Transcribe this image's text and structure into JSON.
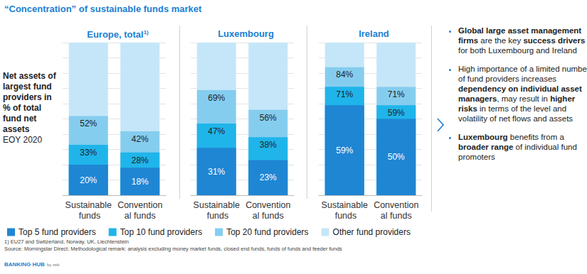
{
  "title": "“Concentration” of sustainable funds market",
  "side_label": {
    "bold": "Net assets of largest fund providers in % of total fund net assets",
    "normal": "EOY 2020"
  },
  "chart_data": [
    {
      "type": "bar",
      "title": "Europe, total",
      "title_note": "1)",
      "categories": [
        "Sustainable funds",
        "Conventional funds"
      ],
      "ylim": [
        0,
        100
      ],
      "yticks": [
        0,
        10,
        20,
        30,
        40,
        50,
        60,
        70,
        80,
        90,
        100
      ],
      "grid": true,
      "tick_labels": "x",
      "stacked": false,
      "legend": "bottom",
      "series": [
        {
          "name": "Top 5 fund providers",
          "color": "#1f86d4",
          "values": [
            20,
            18
          ],
          "value_labels": [
            "20%",
            "18%"
          ],
          "data_labels": true
        },
        {
          "name": "Top 10 fund providers",
          "color": "#1fb5ea",
          "values": [
            33,
            28
          ],
          "value_labels": [
            "33%",
            "28%"
          ],
          "data_labels": true
        },
        {
          "name": "Top 20 fund providers",
          "color": "#85cdef",
          "values": [
            52,
            42
          ],
          "value_labels": [
            "52%",
            "42%"
          ],
          "data_labels": true
        },
        {
          "name": "Other fund providers",
          "color": "#c5e6f8",
          "values": [
            48,
            58
          ],
          "data_labels": false,
          "stacked": true
        }
      ]
    },
    {
      "type": "bar",
      "title": "Luxembourg",
      "categories": [
        "Sustainable funds",
        "Conventional funds"
      ],
      "ylim": [
        0,
        100
      ],
      "yticks": [
        0,
        10,
        20,
        30,
        40,
        50,
        60,
        70,
        80,
        90,
        100
      ],
      "grid": true,
      "tick_labels": "x",
      "stacked": false,
      "series": [
        {
          "name": "Top 5 fund providers",
          "color": "#1f86d4",
          "values": [
            31,
            23
          ],
          "value_labels": [
            "31%",
            "23%"
          ],
          "data_labels": true
        },
        {
          "name": "Top 10 fund providers",
          "color": "#1fb5ea",
          "values": [
            47,
            38
          ],
          "value_labels": [
            "47%",
            "38%"
          ],
          "data_labels": true
        },
        {
          "name": "Top 20 fund providers",
          "color": "#85cdef",
          "values": [
            69,
            56
          ],
          "value_labels": [
            "69%",
            "56%"
          ],
          "data_labels": true
        },
        {
          "name": "Other fund providers",
          "color": "#c5e6f8",
          "values": [
            31,
            44
          ],
          "data_labels": false,
          "stacked": true
        }
      ]
    },
    {
      "type": "bar",
      "title": "Ireland",
      "categories": [
        "Sustainable funds",
        "Conventional funds"
      ],
      "ylim": [
        0,
        100
      ],
      "yticks": [
        0,
        10,
        20,
        30,
        40,
        50,
        60,
        70,
        80,
        90,
        100
      ],
      "grid": true,
      "tick_labels": "x",
      "stacked": false,
      "series": [
        {
          "name": "Top 5 fund providers",
          "color": "#1f86d4",
          "values": [
            59,
            50
          ],
          "value_labels": [
            "59%",
            "50%"
          ],
          "data_labels": true
        },
        {
          "name": "Top 10 fund providers",
          "color": "#1fb5ea",
          "values": [
            71,
            59
          ],
          "value_labels": [
            "71%",
            "59%"
          ],
          "data_labels": true
        },
        {
          "name": "Top 20 fund providers",
          "color": "#85cdef",
          "values": [
            84,
            71
          ],
          "value_labels": [
            "84%",
            "71%"
          ],
          "data_labels": true
        },
        {
          "name": "Other fund providers",
          "color": "#c5e6f8",
          "values": [
            16,
            29
          ],
          "data_labels": false,
          "stacked": true
        }
      ]
    }
  ],
  "bullets": [
    [
      {
        "text": "Global large asset management firms",
        "bold": true
      },
      {
        "text": " are the key "
      },
      {
        "text": "success drivers",
        "bold": true
      },
      {
        "text": " for both Luxembourg and Ireland"
      }
    ],
    [
      {
        "text": "High importance of a limited number of fund providers increases "
      },
      {
        "text": "dependency on individual asset managers",
        "bold": true
      },
      {
        "text": ", may result in "
      },
      {
        "text": "higher risks",
        "bold": true
      },
      {
        "text": " in terms of the level and volatility of net flows and assets"
      }
    ],
    [
      {
        "text": "Luxembourg",
        "bold": true
      },
      {
        "text": " benefits from a "
      },
      {
        "text": "broader range",
        "bold": true
      },
      {
        "text": " of individual fund promoters"
      }
    ]
  ],
  "footnotes": [
    "1) EU27 and Switzerland, Norway, UK, Liechtenstein",
    "Source: Morningstar Direct; Methodological remark: analysis excluding money market funds, closed end funds, funds of funds and feeder funds"
  ],
  "logo": {
    "text": "BANKING HUB",
    "by": "by zeb"
  }
}
